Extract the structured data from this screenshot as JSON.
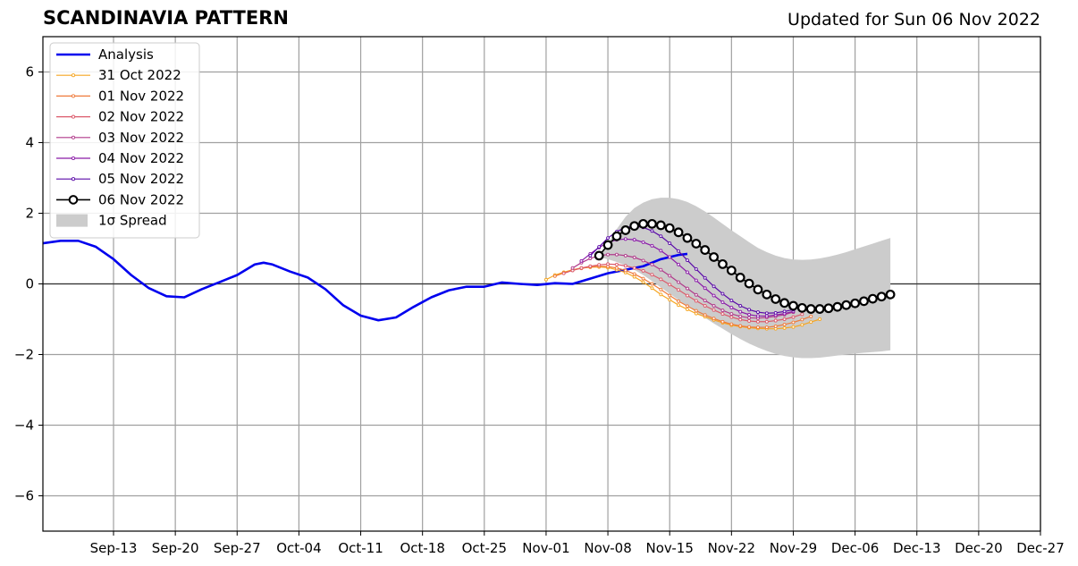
{
  "header": {
    "title": "SCANDINAVIA PATTERN",
    "updated": "Updated for Sun 06 Nov 2022"
  },
  "chart_data": {
    "type": "line",
    "title": "SCANDINAVIA PATTERN",
    "subtitle": "Updated for Sun 06 Nov 2022",
    "xlabel": "",
    "ylabel": "",
    "xlim": [
      "2022-09-05",
      "2022-12-27"
    ],
    "ylim": [
      -7,
      7
    ],
    "grid": true,
    "legend_position": "upper-left",
    "x_ticks": [
      "Sep-13",
      "Sep-20",
      "Sep-27",
      "Oct-04",
      "Oct-11",
      "Oct-18",
      "Oct-25",
      "Nov-01",
      "Nov-08",
      "Nov-15",
      "Nov-22",
      "Nov-29",
      "Dec-06",
      "Dec-13",
      "Dec-20",
      "Dec-27"
    ],
    "y_ticks": [
      "6",
      "4",
      "2",
      "0",
      "−2",
      "−4",
      "−6"
    ],
    "analysis": {
      "name": "Analysis",
      "color": "#0000ee",
      "points": [
        [
          "2022-09-05",
          1.15
        ],
        [
          "2022-09-07",
          1.22
        ],
        [
          "2022-09-09",
          1.22
        ],
        [
          "2022-09-11",
          1.05
        ],
        [
          "2022-09-13",
          0.7
        ],
        [
          "2022-09-15",
          0.25
        ],
        [
          "2022-09-17",
          -0.12
        ],
        [
          "2022-09-19",
          -0.35
        ],
        [
          "2022-09-21",
          -0.38
        ],
        [
          "2022-09-23",
          -0.15
        ],
        [
          "2022-09-25",
          0.05
        ],
        [
          "2022-09-27",
          0.25
        ],
        [
          "2022-09-29",
          0.55
        ],
        [
          "2022-09-30",
          0.6
        ],
        [
          "2022-10-01",
          0.55
        ],
        [
          "2022-10-03",
          0.35
        ],
        [
          "2022-10-05",
          0.18
        ],
        [
          "2022-10-07",
          -0.15
        ],
        [
          "2022-10-09",
          -0.6
        ],
        [
          "2022-10-11",
          -0.9
        ],
        [
          "2022-10-13",
          -1.03
        ],
        [
          "2022-10-15",
          -0.95
        ],
        [
          "2022-10-17",
          -0.65
        ],
        [
          "2022-10-19",
          -0.38
        ],
        [
          "2022-10-21",
          -0.18
        ],
        [
          "2022-10-23",
          -0.08
        ],
        [
          "2022-10-25",
          -0.08
        ],
        [
          "2022-10-27",
          0.04
        ],
        [
          "2022-10-29",
          0.0
        ],
        [
          "2022-10-31",
          -0.03
        ],
        [
          "2022-11-02",
          0.02
        ],
        [
          "2022-11-04",
          0.0
        ],
        [
          "2022-11-06",
          0.15
        ],
        [
          "2022-11-08",
          0.3
        ],
        [
          "2022-11-10",
          0.4
        ],
        [
          "2022-11-12",
          0.5
        ],
        [
          "2022-11-14",
          0.7
        ],
        [
          "2022-11-16",
          0.82
        ],
        [
          "2022-11-17",
          0.85
        ]
      ]
    },
    "series": [
      {
        "name": "31 Oct 2022",
        "color": "#f5a623",
        "start": "2022-11-01",
        "values": [
          0.12,
          0.25,
          0.33,
          0.4,
          0.45,
          0.47,
          0.48,
          0.46,
          0.4,
          0.32,
          0.2,
          0.05,
          -0.12,
          -0.3,
          -0.45,
          -0.6,
          -0.72,
          -0.84,
          -0.93,
          -1.02,
          -1.1,
          -1.17,
          -1.21,
          -1.24,
          -1.26,
          -1.27,
          -1.27,
          -1.25,
          -1.22,
          -1.16,
          -1.08,
          -1.0
        ]
      },
      {
        "name": "01 Nov 2022",
        "color": "#ef7a3a",
        "start": "2022-11-02",
        "values": [
          0.22,
          0.31,
          0.39,
          0.44,
          0.48,
          0.5,
          0.49,
          0.45,
          0.38,
          0.28,
          0.15,
          0.0,
          -0.16,
          -0.33,
          -0.49,
          -0.63,
          -0.76,
          -0.88,
          -0.98,
          -1.07,
          -1.14,
          -1.19,
          -1.22,
          -1.23,
          -1.23,
          -1.2,
          -1.15,
          -1.09,
          -1.01,
          -0.92
        ]
      },
      {
        "name": "02 Nov 2022",
        "color": "#dc5a6b",
        "start": "2022-11-03",
        "values": [
          0.3,
          0.38,
          0.45,
          0.5,
          0.54,
          0.56,
          0.55,
          0.51,
          0.45,
          0.37,
          0.26,
          0.13,
          -0.02,
          -0.17,
          -0.33,
          -0.48,
          -0.62,
          -0.74,
          -0.85,
          -0.94,
          -1.01,
          -1.05,
          -1.07,
          -1.07,
          -1.04,
          -1.0,
          -0.94,
          -0.86
        ]
      },
      {
        "name": "03 Nov 2022",
        "color": "#b03a8a",
        "start": "2022-11-04",
        "values": [
          0.45,
          0.6,
          0.72,
          0.8,
          0.83,
          0.83,
          0.8,
          0.75,
          0.66,
          0.55,
          0.4,
          0.23,
          0.05,
          -0.13,
          -0.31,
          -0.47,
          -0.62,
          -0.75,
          -0.85,
          -0.92,
          -0.96,
          -0.97,
          -0.95,
          -0.92,
          -0.87,
          -0.8
        ]
      },
      {
        "name": "04 Nov 2022",
        "color": "#8a1aa8",
        "start": "2022-11-05",
        "values": [
          0.65,
          0.85,
          1.03,
          1.17,
          1.25,
          1.27,
          1.25,
          1.18,
          1.08,
          0.94,
          0.76,
          0.55,
          0.33,
          0.1,
          -0.12,
          -0.33,
          -0.52,
          -0.67,
          -0.79,
          -0.87,
          -0.91,
          -0.91,
          -0.88,
          -0.84,
          -0.78
        ]
      },
      {
        "name": "05 Nov 2022",
        "color": "#5a0aa8",
        "start": "2022-11-06",
        "values": [
          0.8,
          1.05,
          1.3,
          1.48,
          1.6,
          1.63,
          1.6,
          1.5,
          1.35,
          1.15,
          0.93,
          0.67,
          0.42,
          0.17,
          -0.07,
          -0.28,
          -0.47,
          -0.62,
          -0.73,
          -0.8,
          -0.83,
          -0.82,
          -0.78,
          -0.73
        ]
      },
      {
        "name": "06 Nov 2022",
        "color": "#000000",
        "start": "2022-11-07",
        "values": [
          0.8,
          1.1,
          1.35,
          1.52,
          1.64,
          1.7,
          1.7,
          1.66,
          1.58,
          1.46,
          1.3,
          1.14,
          0.96,
          0.76,
          0.56,
          0.38,
          0.18,
          0.01,
          -0.16,
          -0.3,
          -0.43,
          -0.54,
          -0.62,
          -0.68,
          -0.71,
          -0.71,
          -0.69,
          -0.65,
          -0.6,
          -0.55,
          -0.49,
          -0.42,
          -0.36,
          -0.3
        ]
      }
    ],
    "spread": {
      "name": "1σ Spread",
      "color": "#cccccc",
      "start": "2022-11-07",
      "upper": [
        0.75,
        1.15,
        1.55,
        1.9,
        2.15,
        2.3,
        2.4,
        2.44,
        2.44,
        2.4,
        2.32,
        2.2,
        2.05,
        1.88,
        1.7,
        1.52,
        1.35,
        1.18,
        1.02,
        0.9,
        0.8,
        0.73,
        0.69,
        0.68,
        0.69,
        0.72,
        0.77,
        0.83,
        0.9,
        0.98,
        1.06,
        1.14,
        1.22,
        1.3
      ],
      "lower": [
        0.75,
        0.7,
        0.62,
        0.52,
        0.4,
        0.25,
        0.08,
        -0.1,
        -0.28,
        -0.46,
        -0.63,
        -0.8,
        -0.96,
        -1.12,
        -1.27,
        -1.42,
        -1.56,
        -1.69,
        -1.8,
        -1.9,
        -1.98,
        -2.04,
        -2.08,
        -2.1,
        -2.1,
        -2.09,
        -2.06,
        -2.03,
        -2.0,
        -1.97,
        -1.95,
        -1.93,
        -1.91,
        -1.88
      ]
    },
    "legend": [
      "Analysis",
      "31 Oct 2022",
      "01 Nov 2022",
      "02 Nov 2022",
      "03 Nov 2022",
      "04 Nov 2022",
      "05 Nov 2022",
      "06 Nov 2022",
      "1σ Spread"
    ]
  }
}
